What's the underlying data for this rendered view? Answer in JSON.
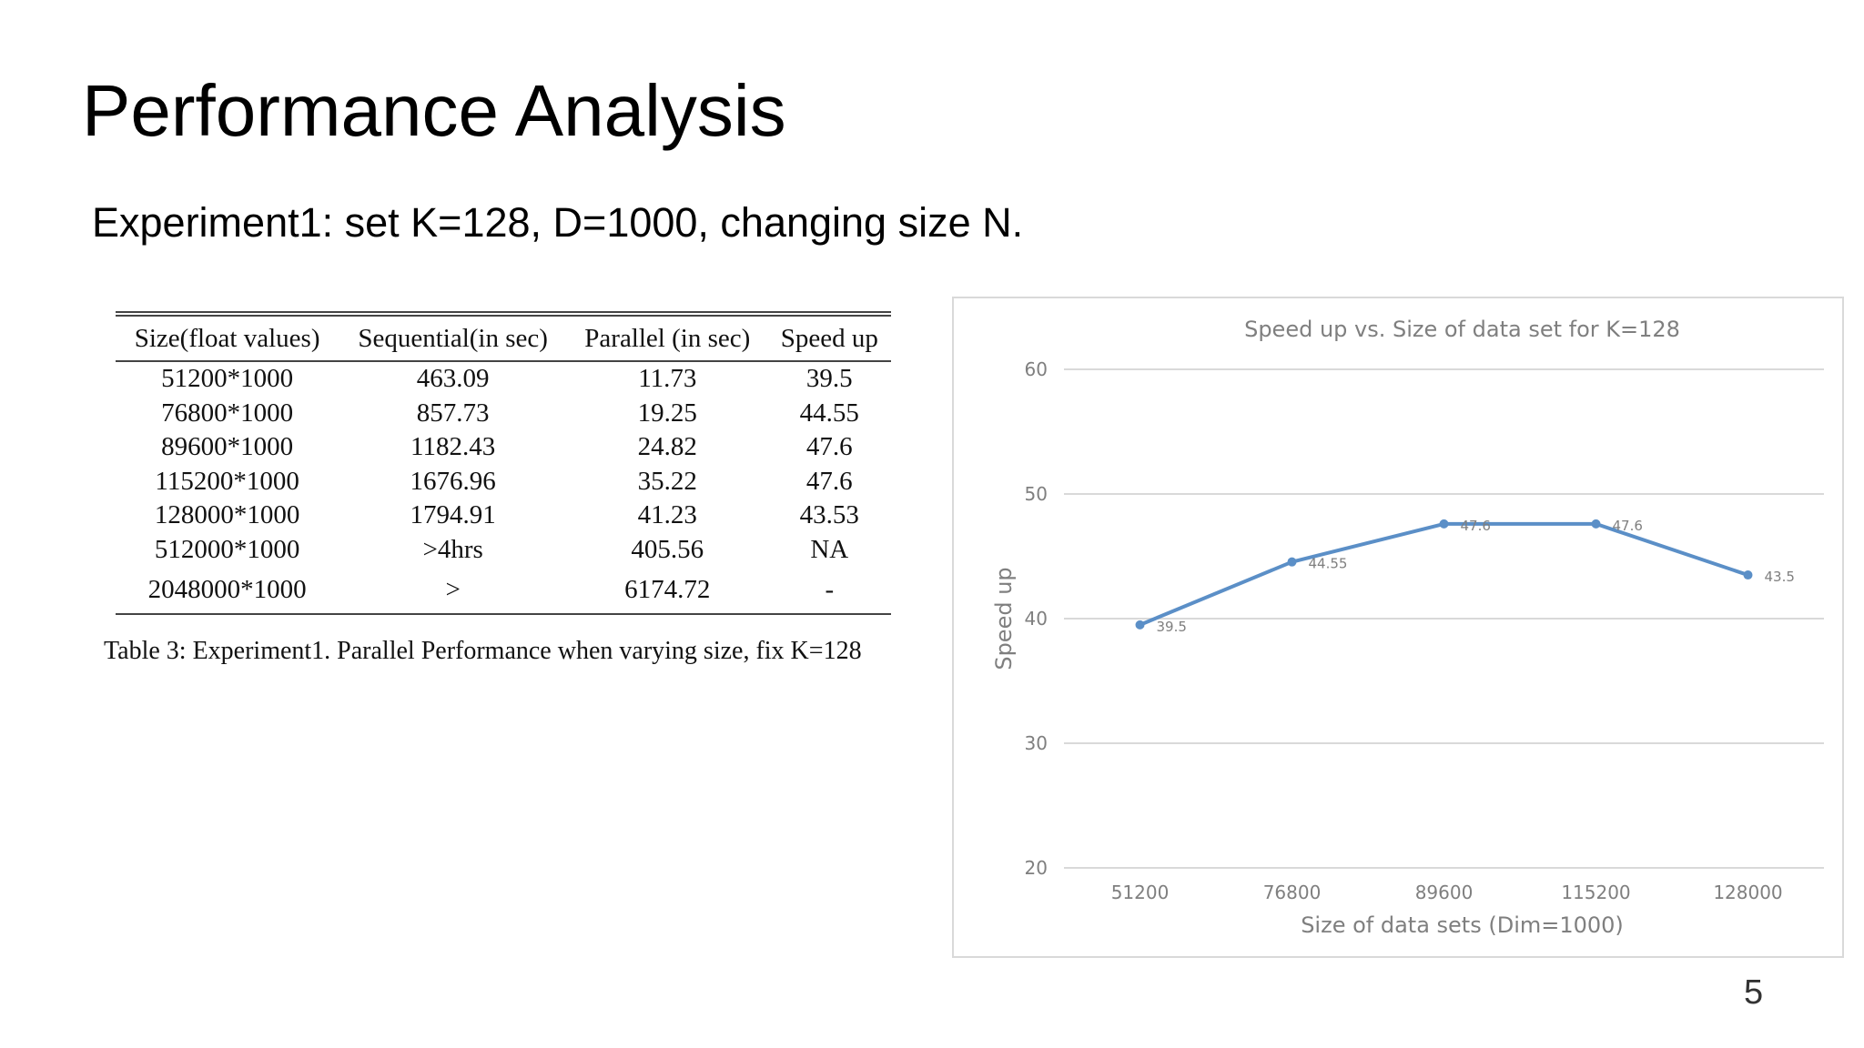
{
  "slide": {
    "title": "Performance Analysis",
    "subtitle": "Experiment1: set K=128, D=1000, changing size N.",
    "page_number": "5"
  },
  "table": {
    "headers": [
      "Size(float values)",
      "Sequential(in sec)",
      "Parallel (in sec)",
      "Speed up"
    ],
    "rows": [
      [
        "51200*1000",
        "463.09",
        "11.73",
        "39.5"
      ],
      [
        "76800*1000",
        "857.73",
        "19.25",
        "44.55"
      ],
      [
        "89600*1000",
        "1182.43",
        "24.82",
        "47.6"
      ],
      [
        "115200*1000",
        "1676.96",
        "35.22",
        "47.6"
      ],
      [
        "128000*1000",
        "1794.91",
        "41.23",
        "43.53"
      ],
      [
        "512000*1000",
        ">4hrs",
        "405.56",
        "NA"
      ],
      [
        "2048000*1000",
        ">",
        "6174.72",
        "-"
      ]
    ],
    "caption": "Table 3: Experiment1. Parallel Performance when varying size, fix K=128"
  },
  "chart_data": {
    "type": "line",
    "title": "Speed up vs. Size of data set for K=128",
    "xlabel": "Size of data sets (Dim=1000)",
    "ylabel": "Speed up",
    "categories": [
      "51200",
      "76800",
      "89600",
      "115200",
      "128000"
    ],
    "series": [
      {
        "values": [
          39.5,
          44.55,
          47.6,
          47.6,
          43.5
        ],
        "labels": [
          "39.5",
          "44.55",
          "47.6",
          "47.6",
          "43.5"
        ]
      }
    ],
    "ylim": [
      20,
      60
    ],
    "yticks": [
      20,
      30,
      40,
      50,
      60
    ],
    "grid": true,
    "legend": "none",
    "colors": {
      "line": "#5b8fc7",
      "grid": "#d9d9d9",
      "text": "#7f7f7f"
    }
  }
}
